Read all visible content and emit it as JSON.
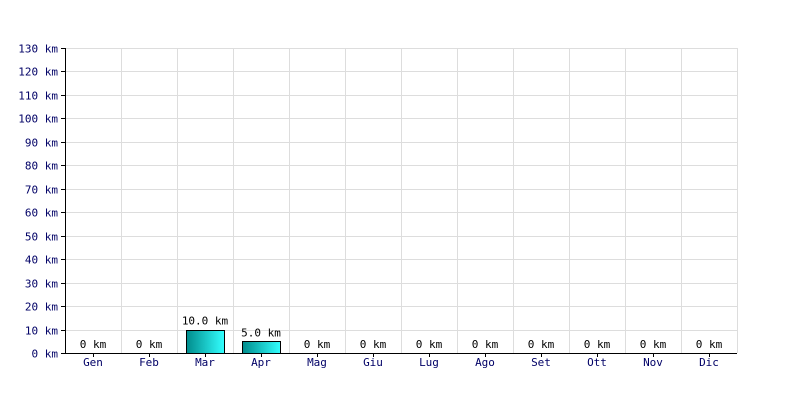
{
  "chart_data": {
    "type": "bar",
    "title": "",
    "xlabel": "",
    "ylabel": "",
    "categories": [
      "Gen",
      "Feb",
      "Mar",
      "Apr",
      "Mag",
      "Giu",
      "Lug",
      "Ago",
      "Set",
      "Ott",
      "Nov",
      "Dic"
    ],
    "values": [
      0,
      0,
      10.0,
      5.0,
      0,
      0,
      0,
      0,
      0,
      0,
      0,
      0
    ],
    "value_labels": [
      "0 km",
      "0 km",
      "10.0 km",
      "5.0 km",
      "0 km",
      "0 km",
      "0 km",
      "0 km",
      "0 km",
      "0 km",
      "0 km",
      "0 km"
    ],
    "ylim": [
      0,
      130
    ],
    "y_ticks": [
      {
        "value": 0,
        "label": "0 km"
      },
      {
        "value": 10,
        "label": "10 km"
      },
      {
        "value": 20,
        "label": "20 km"
      },
      {
        "value": 30,
        "label": "30 km"
      },
      {
        "value": 40,
        "label": "40 km"
      },
      {
        "value": 50,
        "label": "50 km"
      },
      {
        "value": 60,
        "label": "60 km"
      },
      {
        "value": 70,
        "label": "70 km"
      },
      {
        "value": 80,
        "label": "80 km"
      },
      {
        "value": 90,
        "label": "90 km"
      },
      {
        "value": 100,
        "label": "100 km"
      },
      {
        "value": 110,
        "label": "110 km"
      },
      {
        "value": 120,
        "label": "120 km"
      },
      {
        "value": 130,
        "label": "130 km"
      }
    ],
    "grid": true,
    "legend": "none",
    "colors": {
      "bar_light": "#33ffff",
      "bar_dark": "#008c8c",
      "bar_border": "#000000",
      "grid": "#dddddd",
      "axis": "#000000",
      "tick_text": "#000066"
    }
  }
}
